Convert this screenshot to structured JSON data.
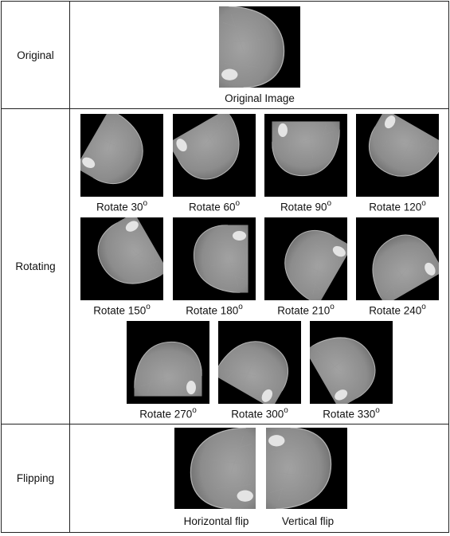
{
  "rows": {
    "original": {
      "label": "Original"
    },
    "rotating": {
      "label": "Rotating"
    },
    "flipping": {
      "label": "Flipping"
    }
  },
  "original": {
    "caption": "Original Image"
  },
  "rotations": [
    {
      "text": "Rotate 30",
      "deg": "o"
    },
    {
      "text": "Rotate 60",
      "deg": "o"
    },
    {
      "text": "Rotate 90",
      "deg": "o"
    },
    {
      "text": "Rotate 120",
      "deg": "o"
    },
    {
      "text": "Rotate 150",
      "deg": "o"
    },
    {
      "text": "Rotate 180",
      "deg": "o"
    },
    {
      "text": "Rotate 210",
      "deg": "o"
    },
    {
      "text": "Rotate 240",
      "deg": "o"
    },
    {
      "text": "Rotate 270",
      "deg": "o"
    },
    {
      "text": "Rotate 300",
      "deg": "o"
    },
    {
      "text": "Rotate 330",
      "deg": "o"
    }
  ],
  "flips": [
    {
      "caption": "Horizontal flip"
    },
    {
      "caption": "Vertical flip"
    }
  ],
  "colors": {
    "background": "#000000",
    "tissue": "#8a8a8a",
    "highlight": "#e6e6e6",
    "border": "#222222"
  }
}
